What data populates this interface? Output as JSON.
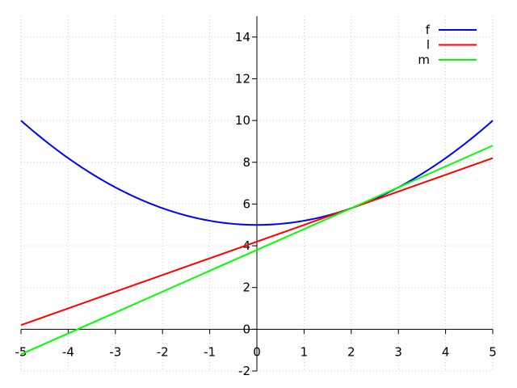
{
  "chart_data": {
    "type": "line",
    "title": "",
    "xlabel": "",
    "ylabel": "",
    "xlim": [
      -5,
      5
    ],
    "ylim": [
      -2,
      15
    ],
    "xticks": [
      -5,
      -4,
      -3,
      -2,
      -1,
      0,
      1,
      2,
      3,
      4,
      5
    ],
    "yticks": [
      -2,
      0,
      2,
      4,
      6,
      8,
      10,
      12,
      14
    ],
    "grid": true,
    "legend_position": "top-right",
    "axes_through_origin": true,
    "series": [
      {
        "name": "f",
        "color": "#0000ff",
        "x": [
          -5,
          -4,
          -3,
          -2,
          -1,
          0,
          1,
          2,
          3,
          4,
          5
        ],
        "y": [
          10,
          8.2,
          6.8,
          5.8,
          5.2,
          5,
          5.2,
          5.8,
          6.8,
          8.2,
          10
        ]
      },
      {
        "name": "l",
        "color": "#ff0000",
        "x": [
          -5,
          5
        ],
        "y": [
          0.2,
          8.2
        ]
      },
      {
        "name": "m",
        "color": "#00ff00",
        "x": [
          -5,
          5
        ],
        "y": [
          -1.2,
          8.8
        ]
      }
    ]
  }
}
